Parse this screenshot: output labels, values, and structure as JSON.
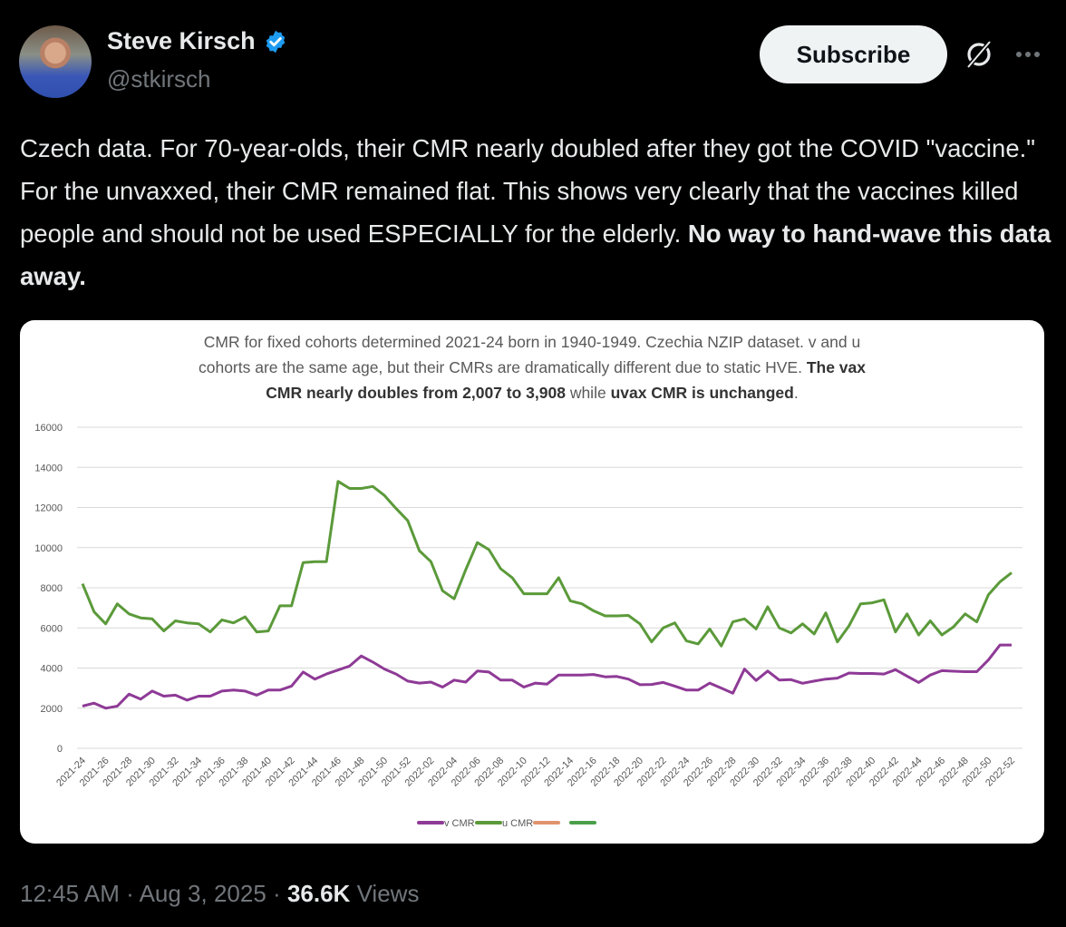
{
  "author": {
    "name": "Steve Kirsch",
    "handle": "@stkirsch",
    "verified": true
  },
  "actions": {
    "subscribe_label": "Subscribe",
    "grok_icon": "grok-icon",
    "more_icon": "more-icon"
  },
  "tweet": {
    "text": "Czech data. For 70-year-olds, their CMR nearly doubled after they got the COVID \"vaccine.\" For the unvaxxed, their CMR remained flat. This shows very clearly that the vaccines killed people and should not be used ESPECIALLY for the elderly. ",
    "bold_text": "No way to hand-wave this data away."
  },
  "footer": {
    "time": "12:45 AM",
    "sep": "·",
    "date": "Aug 3, 2025",
    "views_count": "36.6K",
    "views_label": "Views"
  },
  "colors": {
    "v_cmr": "#8e3a96",
    "u_cmr": "#5b9a3a",
    "orange": "#e0946e",
    "green2": "#4aa04a",
    "accent": "#1d9bf0"
  },
  "chart_data": {
    "type": "line",
    "title_lines": [
      [
        {
          "t": "CMR for fixed cohorts determined 2021-24 born in 1940-1949. Czechia NZIP dataset.  v and u",
          "b": false
        }
      ],
      [
        {
          "t": "cohorts are the same age, but their CMRs are dramatically different due to static HVE. ",
          "b": false
        },
        {
          "t": "The vax",
          "b": true
        }
      ],
      [
        {
          "t": "CMR nearly doubles from 2,007 to 3,908",
          "b": true
        },
        {
          "t": " while ",
          "b": false
        },
        {
          "t": "uvax CMR is unchanged",
          "b": true
        },
        {
          "t": ".",
          "b": false
        }
      ]
    ],
    "ylim": [
      0,
      16000
    ],
    "yticks": [
      0,
      2000,
      4000,
      6000,
      8000,
      10000,
      12000,
      14000,
      16000
    ],
    "grid": true,
    "legend_position": "bottom",
    "xtick_labels": [
      "2021-24",
      "2021-26",
      "2021-28",
      "2021-30",
      "2021-32",
      "2021-34",
      "2021-36",
      "2021-38",
      "2021-40",
      "2021-42",
      "2021-44",
      "2021-46",
      "2021-48",
      "2021-50",
      "2021-52",
      "2022-02",
      "2022-04",
      "2022-06",
      "2022-08",
      "2022-10",
      "2022-12",
      "2022-14",
      "2022-16",
      "2022-18",
      "2022-20",
      "2022-22",
      "2022-24",
      "2022-26",
      "2022-28",
      "2022-30",
      "2022-32",
      "2022-34",
      "2022-36",
      "2022-38",
      "2022-40",
      "2022-42",
      "2022-44",
      "2022-46",
      "2022-48",
      "2022-50",
      "2022-52"
    ],
    "series": [
      {
        "name": "v CMR",
        "color": "#8e3a96",
        "values": [
          2100,
          2250,
          2000,
          2100,
          2700,
          2450,
          2850,
          2600,
          2650,
          2400,
          2600,
          2600,
          2850,
          2900,
          2850,
          2650,
          2900,
          2900,
          3100,
          3800,
          3450,
          3700,
          3900,
          4100,
          4600,
          4300,
          3950,
          3700,
          3350,
          3250,
          3300,
          3050,
          3400,
          3300,
          3850,
          3800,
          3400,
          3400,
          3050,
          3250,
          3200,
          3650,
          3650,
          3650,
          3680,
          3560,
          3580,
          3450,
          3170,
          3180,
          3280,
          3100,
          2900,
          2900,
          3250,
          3000,
          2750,
          3950,
          3380,
          3850,
          3400,
          3420,
          3240,
          3350,
          3450,
          3500,
          3750,
          3730,
          3730,
          3700,
          3920,
          3600,
          3280,
          3650,
          3870,
          3840,
          3820,
          3820,
          4400,
          5150,
          5150
        ]
      },
      {
        "name": "u CMR",
        "color": "#5b9a3a",
        "values": [
          8200,
          6800,
          6200,
          7200,
          6700,
          6500,
          6450,
          5850,
          6350,
          6250,
          6200,
          5800,
          6400,
          6250,
          6550,
          5800,
          5850,
          7100,
          7100,
          9250,
          9300,
          9300,
          13300,
          12950,
          12950,
          13050,
          12600,
          11950,
          11350,
          9850,
          9300,
          7850,
          7450,
          8900,
          10250,
          9900,
          8950,
          8500,
          7700,
          7700,
          7700,
          8500,
          7350,
          7200,
          6850,
          6600,
          6600,
          6620,
          6200,
          5300,
          6000,
          6250,
          5350,
          5200,
          5950,
          5100,
          6300,
          6450,
          5950,
          7050,
          6000,
          5750,
          6200,
          5700,
          6750,
          5300,
          6100,
          7200,
          7250,
          7400,
          5800,
          6700,
          5650,
          6350,
          5650,
          6050,
          6700,
          6300,
          7650,
          8300,
          8750
        ]
      },
      {
        "name": "",
        "color": "#e0946e",
        "values": []
      },
      {
        "name": "",
        "color": "#4aa04a",
        "values": []
      }
    ]
  }
}
